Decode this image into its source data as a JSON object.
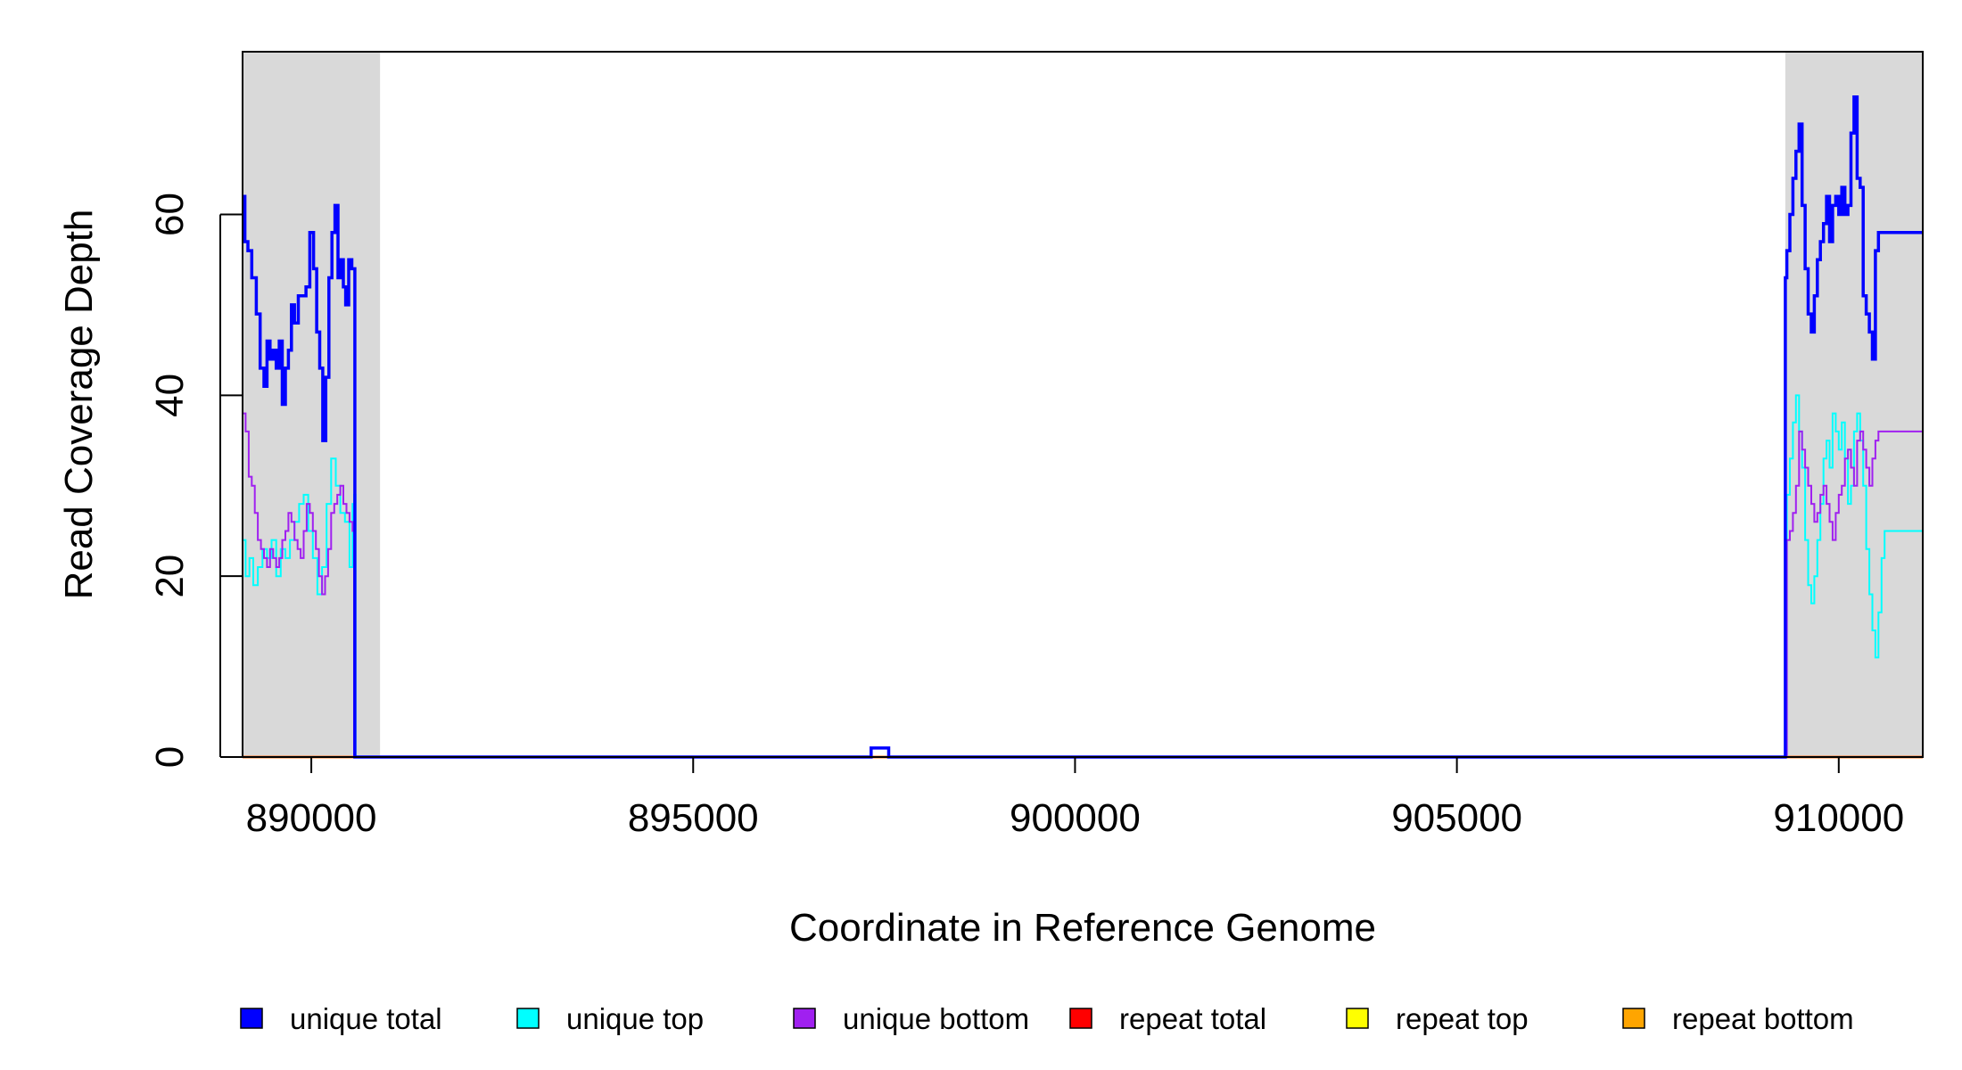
{
  "chart_data": {
    "type": "line",
    "title": "",
    "xlabel": "Coordinate in Reference Genome",
    "ylabel": "Read Coverage Depth",
    "xlim": [
      889100,
      911100
    ],
    "ylim": [
      0,
      78
    ],
    "x_ticks": [
      890000,
      895000,
      900000,
      905000,
      910000
    ],
    "x_tick_labels": [
      "890000",
      "895000",
      "900000",
      "905000",
      "910000"
    ],
    "y_ticks": [
      0,
      20,
      40,
      60
    ],
    "y_tick_labels": [
      "0",
      "20",
      "40",
      "60"
    ],
    "shaded_regions": [
      {
        "x0": 889100,
        "x1": 890900,
        "color": "#d9d9d9"
      },
      {
        "x0": 909300,
        "x1": 911100,
        "color": "#d9d9d9"
      }
    ],
    "legend": {
      "placement": "bottom",
      "items": [
        {
          "label": "unique total",
          "color": "#0000ff"
        },
        {
          "label": "unique top",
          "color": "#00ffff"
        },
        {
          "label": "unique bottom",
          "color": "#a020f0"
        },
        {
          "label": "repeat total",
          "color": "#ff0000"
        },
        {
          "label": "repeat top",
          "color": "#ffff00"
        },
        {
          "label": "repeat bottom",
          "color": "#ffa500"
        }
      ]
    },
    "series": [
      {
        "name": "unique total",
        "color": "#0000ff",
        "x": [
          889100,
          889130,
          889170,
          889220,
          889280,
          889330,
          889380,
          889420,
          889460,
          889500,
          889540,
          889580,
          889620,
          889660,
          889700,
          889740,
          889780,
          889830,
          889880,
          889930,
          889980,
          890030,
          890070,
          890110,
          890150,
          890190,
          890230,
          890270,
          890310,
          890350,
          890390,
          890420,
          890450,
          890490,
          890530,
          890570,
          890620,
          890660,
          890700,
          890730,
          890760,
          890790,
          890820,
          890850,
          890880,
          890910,
          890935,
          890950,
          890960,
          891000,
          897320,
          897330,
          897550,
          897560,
          909290,
          909300,
          909320,
          909360,
          909400,
          909440,
          909480,
          909520,
          909560,
          909600,
          909640,
          909680,
          909720,
          909760,
          909800,
          909840,
          909880,
          909920,
          909960,
          910000,
          910040,
          910080,
          910120,
          910160,
          910200,
          910240,
          910280,
          910320,
          910360,
          910400,
          910440,
          910480,
          910520,
          910560,
          910600,
          910640,
          910680,
          910720,
          910760,
          910800,
          910840,
          910880,
          910920,
          910960,
          911000,
          911040,
          911080,
          911100
        ],
        "y": [
          62,
          57,
          56,
          53,
          49,
          43,
          41,
          46,
          44,
          45,
          43,
          46,
          39,
          43,
          45,
          50,
          48,
          51,
          51,
          52,
          58,
          54,
          47,
          43,
          35,
          42,
          53,
          58,
          61,
          53,
          55,
          52,
          50,
          55,
          54,
          0,
          0,
          0,
          0,
          0,
          0,
          0,
          0,
          0,
          0,
          0,
          0,
          0,
          0,
          0,
          0,
          1,
          1,
          0,
          0,
          53,
          56,
          60,
          64,
          67,
          70,
          61,
          54,
          49,
          47,
          51,
          55,
          57,
          59,
          62,
          57,
          61,
          62,
          60,
          63,
          60,
          61,
          69,
          73,
          64,
          63,
          51,
          49,
          47,
          44,
          56,
          58,
          58,
          58,
          58,
          58,
          58,
          58,
          58,
          58,
          58,
          58,
          58,
          58,
          58,
          58,
          58
        ],
        "x_note": ""
      },
      {
        "name": "unique top",
        "color": "#00ffff",
        "x": [
          889100,
          889140,
          889190,
          889240,
          889300,
          889360,
          889420,
          889480,
          889540,
          889600,
          889660,
          889720,
          889780,
          889840,
          889900,
          889960,
          890020,
          890080,
          890140,
          890200,
          890260,
          890320,
          890380,
          890440,
          890500,
          890540,
          890560,
          890580,
          909300,
          909320,
          909360,
          909400,
          909440,
          909480,
          909520,
          909560,
          909600,
          909640,
          909680,
          909720,
          909760,
          909800,
          909840,
          909880,
          909920,
          909960,
          910000,
          910040,
          910080,
          910120,
          910160,
          910200,
          910240,
          910280,
          910320,
          910360,
          910400,
          910440,
          910480,
          910520,
          910560,
          910600,
          910640,
          910680,
          910720,
          910760,
          910800,
          910840,
          910880,
          910920,
          910960,
          911000,
          911040,
          911080,
          911100
        ],
        "y": [
          24,
          20,
          22,
          19,
          21,
          23,
          22,
          24,
          20,
          23,
          22,
          24,
          26,
          28,
          29,
          25,
          22,
          18,
          21,
          28,
          33,
          30,
          27,
          26,
          21,
          28,
          29,
          0,
          0,
          29,
          33,
          37,
          40,
          36,
          32,
          24,
          19,
          17,
          20,
          24,
          28,
          33,
          35,
          32,
          38,
          36,
          34,
          37,
          33,
          28,
          30,
          36,
          38,
          35,
          30,
          23,
          18,
          14,
          11,
          16,
          22,
          25,
          25,
          25,
          25,
          25,
          25,
          25,
          25,
          25,
          25,
          25,
          25,
          25,
          25
        ],
        "x_note": ""
      },
      {
        "name": "unique bottom",
        "color": "#a020f0",
        "x": [
          889100,
          889140,
          889180,
          889220,
          889260,
          889300,
          889340,
          889380,
          889420,
          889460,
          889500,
          889540,
          889580,
          889620,
          889660,
          889700,
          889740,
          889780,
          889820,
          889860,
          889900,
          889940,
          889980,
          890020,
          890060,
          890100,
          890140,
          890180,
          890220,
          890260,
          890300,
          890340,
          890380,
          890420,
          890460,
          890500,
          890540,
          890560,
          890580,
          909300,
          909320,
          909360,
          909400,
          909440,
          909480,
          909520,
          909560,
          909600,
          909640,
          909680,
          909720,
          909760,
          909800,
          909840,
          909880,
          909920,
          909960,
          910000,
          910040,
          910080,
          910120,
          910160,
          910200,
          910240,
          910280,
          910320,
          910360,
          910400,
          910440,
          910480,
          910520,
          910560,
          910600,
          910640,
          910680,
          910720,
          910760,
          910800,
          910840,
          910880,
          910920,
          910960,
          911000,
          911040,
          911080,
          911100
        ],
        "y": [
          38,
          36,
          31,
          30,
          27,
          24,
          23,
          22,
          21,
          23,
          22,
          21,
          22,
          24,
          25,
          27,
          26,
          24,
          23,
          22,
          25,
          28,
          27,
          25,
          23,
          20,
          18,
          20,
          23,
          27,
          28,
          29,
          30,
          28,
          27,
          26,
          25,
          0,
          0,
          0,
          24,
          25,
          27,
          30,
          36,
          34,
          32,
          30,
          28,
          26,
          27,
          29,
          30,
          28,
          26,
          24,
          27,
          29,
          30,
          33,
          34,
          32,
          30,
          35,
          36,
          34,
          32,
          30,
          33,
          35,
          36,
          36,
          36,
          36,
          36,
          36,
          36,
          36,
          36,
          36,
          36,
          36,
          36,
          36,
          36,
          36
        ],
        "x_note": ""
      },
      {
        "name": "repeat total",
        "color": "#ff0000",
        "x": [
          889100,
          911100
        ],
        "y": [
          0,
          0
        ],
        "x_note": ""
      },
      {
        "name": "repeat top",
        "color": "#ffff00",
        "x": [
          889100,
          911100
        ],
        "y": [
          0,
          0
        ],
        "x_note": ""
      },
      {
        "name": "repeat bottom",
        "color": "#ffa500",
        "x": [
          889100,
          911100
        ],
        "y": [
          0,
          0
        ],
        "x_note": ""
      }
    ]
  }
}
